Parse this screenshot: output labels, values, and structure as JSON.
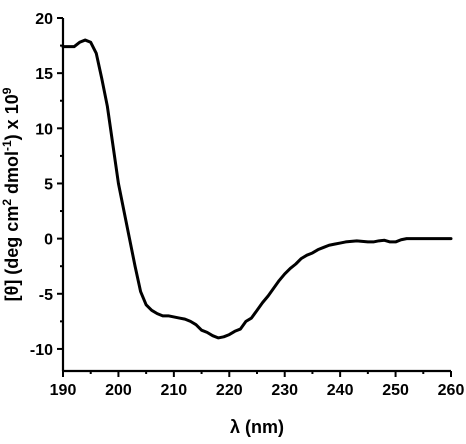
{
  "chart_data": {
    "type": "line",
    "title": "",
    "xlabel": "λ (nm)",
    "ylabel_parts": {
      "main": "[θ] (deg cm",
      "sup1": "2",
      "mid": " dmol",
      "sup2": "-1",
      "tail": ") x 10",
      "sup3": "9"
    },
    "xlim": [
      190,
      260
    ],
    "ylim": [
      -12,
      20
    ],
    "xticks": [
      190,
      200,
      210,
      220,
      230,
      240,
      250,
      260
    ],
    "yticks": [
      -10,
      -5,
      0,
      5,
      10,
      15,
      20
    ],
    "grid": false,
    "series": [
      {
        "x": [
          190,
          192,
          193,
          194,
          195,
          196,
          197,
          198,
          199,
          200,
          201,
          202,
          203,
          204,
          205,
          206,
          207,
          208,
          209,
          210,
          211,
          212,
          213,
          214,
          215,
          216,
          217,
          218,
          219,
          220,
          221,
          222,
          223,
          224,
          225,
          226,
          227,
          228,
          229,
          230,
          231,
          232,
          233,
          234,
          235,
          236,
          237,
          238,
          239,
          240,
          241,
          242,
          243,
          244,
          245,
          246,
          247,
          248,
          249,
          250,
          251,
          252,
          253,
          254,
          255,
          256,
          257,
          258,
          259,
          260
        ],
        "values": [
          17.4,
          17.4,
          17.8,
          18.0,
          17.8,
          16.8,
          14.5,
          12.0,
          8.5,
          5.0,
          2.5,
          0.0,
          -2.5,
          -4.8,
          -6.0,
          -6.5,
          -6.8,
          -7.0,
          -7.0,
          -7.1,
          -7.2,
          -7.3,
          -7.5,
          -7.8,
          -8.3,
          -8.5,
          -8.8,
          -9.0,
          -8.9,
          -8.7,
          -8.4,
          -8.2,
          -7.5,
          -7.2,
          -6.5,
          -5.8,
          -5.2,
          -4.5,
          -3.8,
          -3.2,
          -2.7,
          -2.3,
          -1.8,
          -1.5,
          -1.3,
          -1.0,
          -0.8,
          -0.6,
          -0.5,
          -0.4,
          -0.3,
          -0.25,
          -0.2,
          -0.25,
          -0.3,
          -0.3,
          -0.2,
          -0.15,
          -0.3,
          -0.3,
          -0.1,
          0.0,
          0.0,
          0.0,
          0.0,
          0.0,
          0.0,
          0.0,
          0.0,
          0.0
        ]
      }
    ]
  }
}
